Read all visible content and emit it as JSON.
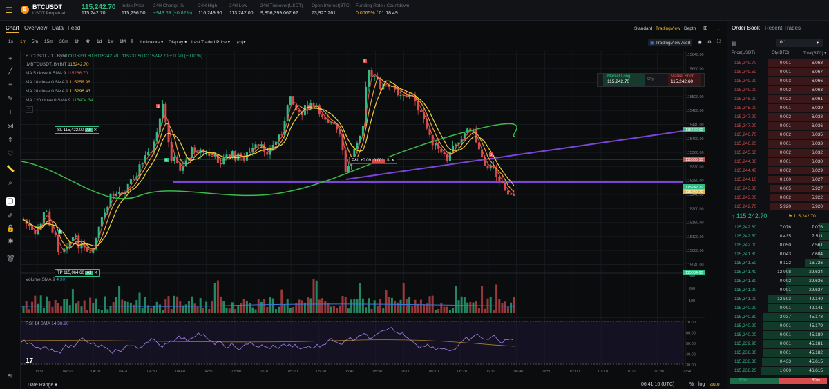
{
  "header": {
    "symbol": "BTCUSDT",
    "subtitle": "USDT Perpetual",
    "price": "115,242.70",
    "mark": "115,242.70",
    "stats": [
      {
        "label": "Index Price",
        "value": "115,296.50"
      },
      {
        "label": "24H Change %",
        "value": "+943.69 (+0.82%)"
      },
      {
        "label": "24H High",
        "value": "116,249.90"
      },
      {
        "label": "24H Low",
        "value": "113,242.00"
      },
      {
        "label": "24H Turnover(USDT)",
        "value": "9,856,399,067.62"
      },
      {
        "label": "Open Interest(BTC)",
        "value": "73,927.261"
      },
      {
        "label": "Funding Rate / Countdown",
        "rate": "0.0065%",
        "countdown": "/ 01:18:49"
      }
    ]
  },
  "tabs": [
    "Chart",
    "Overview",
    "Data",
    "Feed"
  ],
  "view_tabs": [
    "Standard",
    "TradingView",
    "Depth"
  ],
  "intervals": [
    "1s",
    "1m",
    "5m",
    "15m",
    "30m",
    "1h",
    "4h",
    "1d",
    "1w",
    "1M"
  ],
  "tools": {
    "indicators": "Indicators",
    "display": "Display",
    "last_price": "Last Traded Price"
  },
  "alert": "TradingView Alert",
  "legend": {
    "title": "BTCUSDT · 1 · Bybit",
    "ohlc": "O115231.50 H115242.70 L115231.50 C115242.70 +11.20 (+0.01%)",
    "mbt": ".MBTCUSDT, BYBIT",
    "mbt_v": "115242.70",
    "ma5": "MA 5 close 0 SMA 9",
    "ma5_v": "115236.70",
    "ma10": "MA 10 close 0 SMA 9",
    "ma10_v": "115258.96",
    "ma20": "MA 20 close 0 SMA 9",
    "ma20_v": "115296.43",
    "ma120": "MA 120 close 0 SMA 9",
    "ma120_v": "115404.34"
  },
  "orders": {
    "sl": "SL 115,422.00",
    "tp": "TP 115,064.60",
    "all": "All",
    "pnl": "P&L +0.09",
    "pnl_qty": "0.001"
  },
  "market": {
    "long": "Market Long",
    "long_p": "115,242.70",
    "qty": "Qty",
    "short": "Market Short",
    "short_p": "115,242.60"
  },
  "volume_label": "Volume SMA 9",
  "volume_v1": "4",
  "volume_v2": "30",
  "rsi_label": "RSI 14 SMA 14",
  "rsi_v": "38.90",
  "y_ticks": [
    "115640.00",
    "115600.00",
    "115560.00",
    "115520.00",
    "115480.00",
    "115440.00",
    "115400.00",
    "115360.00",
    "115320.00",
    "115280.00",
    "115240.00",
    "115200.00",
    "115160.00",
    "115120.00",
    "115080.00",
    "115040.00"
  ],
  "y_tags": [
    {
      "t": "115422.00",
      "c": "#2ebd85"
    },
    {
      "t": "115335.10",
      "c": "#d64b4b"
    },
    {
      "t": "115242.70",
      "c": "#2ebd85"
    },
    {
      "t": "115242.70",
      "c": "#e8b339"
    },
    {
      "t": "115064.60",
      "c": "#2ebd85"
    }
  ],
  "vol_ticks": [
    "300",
    "200",
    "100"
  ],
  "rsi_ticks": [
    "70.00",
    "60.00",
    "50.00",
    "40.00",
    "30.00"
  ],
  "x_ticks": [
    "03:50",
    "04:00",
    "04:10",
    "04:20",
    "04:30",
    "04:40",
    "04:50",
    "05:00",
    "05:10",
    "05:20",
    "05:30",
    "05:40",
    "05:50",
    "06:00",
    "06:10",
    "06:20",
    "06:30",
    "06:40",
    "06:50",
    "07:00",
    "07:10",
    "07:20",
    "07:30",
    "07:40"
  ],
  "footer": {
    "range": "Date Range",
    "time": "06:41:10 (UTC)",
    "pct": "%",
    "log": "log",
    "auto": "auto"
  },
  "orderbook": {
    "tab1": "Order Book",
    "tab2": "Recent Trades",
    "depth": "0.1",
    "h_price": "Price(USDT)",
    "h_qty": "Qty(BTC)",
    "h_total": "Total(BTC)",
    "asks": [
      [
        "115,249.70",
        "0.001",
        "6.068"
      ],
      [
        "115,249.50",
        "0.001",
        "6.067"
      ],
      [
        "115,249.20",
        "0.003",
        "6.066"
      ],
      [
        "115,249.00",
        "0.002",
        "6.063"
      ],
      [
        "115,248.20",
        "0.022",
        "6.061"
      ],
      [
        "115,248.00",
        "0.001",
        "6.039"
      ],
      [
        "115,247.90",
        "0.002",
        "6.038"
      ],
      [
        "115,247.20",
        "0.001",
        "6.036"
      ],
      [
        "115,246.70",
        "0.002",
        "6.035"
      ],
      [
        "115,246.20",
        "0.001",
        "6.033"
      ],
      [
        "115,245.60",
        "0.002",
        "6.032"
      ],
      [
        "115,244.80",
        "0.001",
        "6.030"
      ],
      [
        "115,244.40",
        "0.002",
        "6.029"
      ],
      [
        "115,244.10",
        "0.100",
        "6.027"
      ],
      [
        "115,243.30",
        "0.005",
        "5.927"
      ],
      [
        "115,243.00",
        "0.002",
        "5.922"
      ],
      [
        "115,242.70",
        "5.920",
        "5.920"
      ]
    ],
    "mid": "115,242.70",
    "mid_mark": "115,242.70",
    "bids": [
      [
        "115,242.60",
        "7.076",
        "7.076"
      ],
      [
        "115,242.50",
        "0.435",
        "7.511"
      ],
      [
        "115,242.00",
        "0.050",
        "7.561"
      ],
      [
        "115,241.80",
        "0.043",
        "7.604"
      ],
      [
        "115,241.50",
        "9.122",
        "16.726"
      ],
      [
        "115,241.40",
        "12.908",
        "29.634"
      ],
      [
        "115,241.30",
        "0.002",
        "29.636"
      ],
      [
        "115,241.20",
        "0.001",
        "29.637"
      ],
      [
        "115,241.00",
        "12.503",
        "42.140"
      ],
      [
        "115,240.90",
        "0.001",
        "42.141"
      ],
      [
        "115,240.30",
        "3.037",
        "45.178"
      ],
      [
        "115,240.20",
        "0.001",
        "45.179"
      ],
      [
        "115,240.00",
        "0.001",
        "45.180"
      ],
      [
        "115,239.90",
        "0.001",
        "45.181"
      ],
      [
        "115,238.80",
        "0.001",
        "45.182"
      ],
      [
        "115,238.30",
        "0.433",
        "45.615"
      ],
      [
        "115,238.20",
        "1.000",
        "46.615"
      ]
    ],
    "buy_pct": "50%",
    "sell_pct": "50%"
  },
  "colors": {
    "up": "#2ebd85",
    "down": "#d64b4b",
    "accent": "#e8b339",
    "ma120": "#3aba4a",
    "trend": "#7b45d9"
  }
}
